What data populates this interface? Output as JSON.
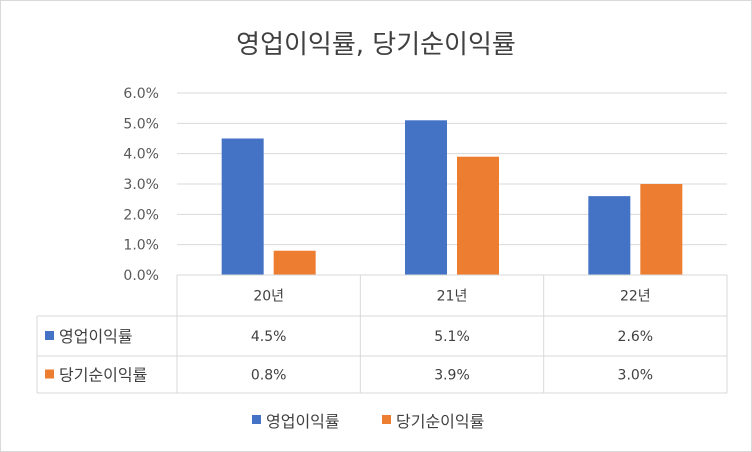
{
  "chart_data": {
    "type": "bar",
    "title": "영업이익률, 당기순이익률",
    "categories": [
      "20년",
      "21년",
      "22년"
    ],
    "series": [
      {
        "name": "영업이익률",
        "values": [
          4.5,
          5.1,
          2.6
        ],
        "labels": [
          "4.5%",
          "5.1%",
          "2.6%"
        ],
        "color": "#4472c4"
      },
      {
        "name": "당기순이익률",
        "values": [
          0.8,
          3.9,
          3.0
        ],
        "labels": [
          "0.8%",
          "3.9%",
          "3.0%"
        ],
        "color": "#ed7d31"
      }
    ],
    "y_ticks": [
      "0.0%",
      "1.0%",
      "2.0%",
      "3.0%",
      "4.0%",
      "5.0%",
      "6.0%"
    ],
    "ylim": [
      0,
      6
    ],
    "xlabel": "",
    "ylabel": "",
    "grid": true,
    "data_table": true,
    "legend_position": "bottom"
  }
}
